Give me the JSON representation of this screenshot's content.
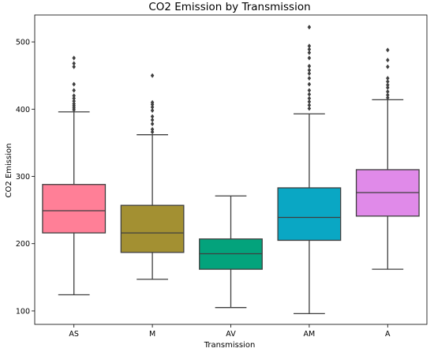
{
  "chart_data": {
    "type": "box",
    "title": "CO2 Emission by Transmission",
    "xlabel": "Transmission",
    "ylabel": "CO2 Emission",
    "ylim": [
      80,
      540
    ],
    "yticks": [
      100,
      200,
      300,
      400,
      500
    ],
    "grid": false,
    "categories": [
      "AS",
      "M",
      "AV",
      "AM",
      "A"
    ],
    "boxes": [
      {
        "category": "AS",
        "color": "#ff7f97",
        "whisker_low": 124,
        "q1": 216,
        "median": 249,
        "q3": 288,
        "whisker_high": 396,
        "outliers": [
          399,
          402,
          405,
          408,
          412,
          416,
          420,
          428,
          437,
          463,
          468,
          476
        ]
      },
      {
        "category": "M",
        "color": "#a39032",
        "whisker_low": 147,
        "q1": 187,
        "median": 216,
        "q3": 257,
        "whisker_high": 362,
        "outliers": [
          366,
          370,
          378,
          384,
          389,
          398,
          403,
          407,
          410,
          450
        ]
      },
      {
        "category": "AV",
        "color": "#03a37c",
        "whisker_low": 105,
        "q1": 162,
        "median": 185,
        "q3": 207,
        "whisker_high": 271,
        "outliers": []
      },
      {
        "category": "AM",
        "color": "#0aa7c4",
        "whisker_low": 96,
        "q1": 205,
        "median": 239,
        "q3": 283,
        "whisker_high": 393,
        "outliers": [
          401,
          406,
          411,
          416,
          422,
          428,
          437,
          446,
          453,
          458,
          464,
          476,
          484,
          489,
          494,
          522
        ]
      },
      {
        "category": "A",
        "color": "#e08ae9",
        "whisker_low": 162,
        "q1": 241,
        "median": 276,
        "q3": 310,
        "whisker_high": 414,
        "outliers": [
          417,
          421,
          426,
          432,
          436,
          441,
          446,
          463,
          473,
          488
        ]
      }
    ]
  }
}
